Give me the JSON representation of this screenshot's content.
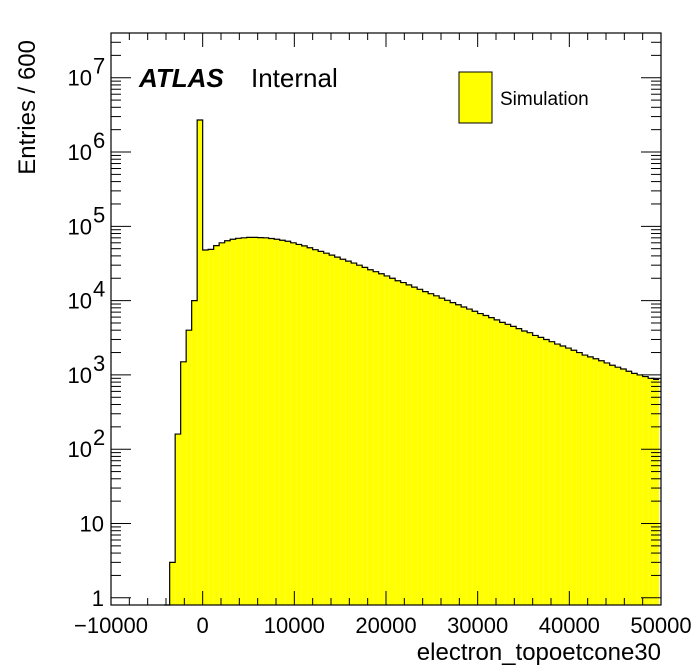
{
  "chart_data": {
    "type": "bar",
    "histogram": true,
    "xlabel": "electron_topoetcone30",
    "ylabel": "Entries / 600",
    "label_experiment": "ATLAS",
    "label_status": "Internal",
    "legend": [
      {
        "name": "Simulation",
        "color": "#ffff00"
      }
    ],
    "legend_position": "top-right",
    "fill_color": "#ffff00",
    "line_color": "#000000",
    "xlim": [
      -10000,
      50000
    ],
    "ylim": [
      0.8,
      40000000
    ],
    "y_scale": "log",
    "grid": false,
    "bin_width": 600,
    "x_ticks": [
      {
        "value": -10000,
        "label": "−10000"
      },
      {
        "value": 0,
        "label": "0"
      },
      {
        "value": 10000,
        "label": "10000"
      },
      {
        "value": 20000,
        "label": "20000"
      },
      {
        "value": 30000,
        "label": "30000"
      },
      {
        "value": 40000,
        "label": "40000"
      },
      {
        "value": 50000,
        "label": "50000"
      }
    ],
    "y_ticks": [
      {
        "value": 1,
        "base": "1",
        "exp": ""
      },
      {
        "value": 10,
        "base": "10",
        "exp": ""
      },
      {
        "value": 100,
        "base": "10",
        "exp": "2"
      },
      {
        "value": 1000,
        "base": "10",
        "exp": "3"
      },
      {
        "value": 10000,
        "base": "10",
        "exp": "4"
      },
      {
        "value": 100000,
        "base": "10",
        "exp": "5"
      },
      {
        "value": 1000000,
        "base": "10",
        "exp": "6"
      },
      {
        "value": 10000000,
        "base": "10",
        "exp": "7"
      }
    ],
    "bins": [
      [
        -4200,
        0
      ],
      [
        -3600,
        3
      ],
      [
        -3000,
        160
      ],
      [
        -2400,
        1500
      ],
      [
        -1800,
        4000
      ],
      [
        -1200,
        10000
      ],
      [
        -600,
        2700000
      ],
      [
        0,
        48000
      ],
      [
        600,
        49000
      ],
      [
        1200,
        55000
      ],
      [
        1800,
        60000
      ],
      [
        2400,
        64000
      ],
      [
        3000,
        67000
      ],
      [
        3600,
        69000
      ],
      [
        4200,
        70000
      ],
      [
        4800,
        71000
      ],
      [
        5400,
        71000
      ],
      [
        6000,
        70500
      ],
      [
        6600,
        70000
      ],
      [
        7200,
        68500
      ],
      [
        7800,
        67000
      ],
      [
        8400,
        65000
      ],
      [
        9000,
        63000
      ],
      [
        9600,
        60000
      ],
      [
        10200,
        57000
      ],
      [
        10800,
        54500
      ],
      [
        11400,
        51500
      ],
      [
        12000,
        48500
      ],
      [
        12600,
        46000
      ],
      [
        13200,
        43500
      ],
      [
        13800,
        41000
      ],
      [
        14400,
        38500
      ],
      [
        15000,
        36000
      ],
      [
        15600,
        34000
      ],
      [
        16200,
        32000
      ],
      [
        16800,
        30000
      ],
      [
        17400,
        28000
      ],
      [
        18000,
        26000
      ],
      [
        18600,
        24500
      ],
      [
        19200,
        23000
      ],
      [
        19800,
        21500
      ],
      [
        20400,
        20000
      ],
      [
        21000,
        18500
      ],
      [
        21600,
        17500
      ],
      [
        22200,
        16300
      ],
      [
        22800,
        15200
      ],
      [
        23400,
        14200
      ],
      [
        24000,
        13200
      ],
      [
        24600,
        12400
      ],
      [
        25200,
        11600
      ],
      [
        25800,
        10800
      ],
      [
        26400,
        10100
      ],
      [
        27000,
        9400
      ],
      [
        27600,
        8800
      ],
      [
        28200,
        8200
      ],
      [
        28800,
        7700
      ],
      [
        29400,
        7200
      ],
      [
        30000,
        6700
      ],
      [
        30600,
        6300
      ],
      [
        31200,
        5900
      ],
      [
        31800,
        5500
      ],
      [
        32400,
        5100
      ],
      [
        33000,
        4800
      ],
      [
        33600,
        4500
      ],
      [
        34200,
        4200
      ],
      [
        34800,
        3900
      ],
      [
        35400,
        3700
      ],
      [
        36000,
        3400
      ],
      [
        36600,
        3200
      ],
      [
        37200,
        3000
      ],
      [
        37800,
        2800
      ],
      [
        38400,
        2600
      ],
      [
        39000,
        2450
      ],
      [
        39600,
        2300
      ],
      [
        40200,
        2150
      ],
      [
        40800,
        2000
      ],
      [
        41400,
        1850
      ],
      [
        42000,
        1750
      ],
      [
        42600,
        1650
      ],
      [
        43200,
        1550
      ],
      [
        43800,
        1450
      ],
      [
        44400,
        1350
      ],
      [
        45000,
        1270
      ],
      [
        45600,
        1200
      ],
      [
        46200,
        1120
      ],
      [
        46800,
        1050
      ],
      [
        47400,
        1000
      ],
      [
        48000,
        950
      ],
      [
        48600,
        900
      ],
      [
        49200,
        870
      ]
    ]
  }
}
